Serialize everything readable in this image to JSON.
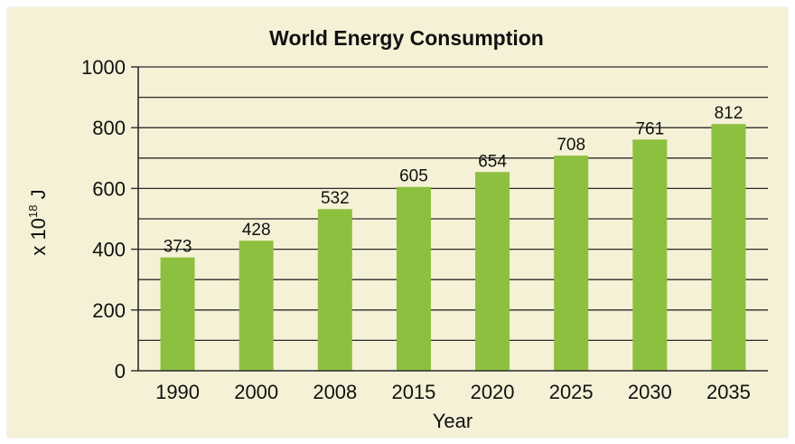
{
  "chart_data": {
    "type": "bar",
    "title": "World Energy Consumption",
    "xlabel": "Year",
    "ylabel": {
      "prefix": "x 10",
      "exponent": "18",
      "unit": " J"
    },
    "categories": [
      "1990",
      "2000",
      "2008",
      "2015",
      "2020",
      "2025",
      "2030",
      "2035"
    ],
    "values": [
      373,
      428,
      532,
      605,
      654,
      708,
      761,
      812
    ],
    "data_labels": [
      "373",
      "428",
      "532",
      "605",
      "654",
      "708",
      "761",
      "812"
    ],
    "ylim": [
      0,
      1000
    ],
    "yticks": [
      0,
      200,
      400,
      600,
      800,
      1000
    ],
    "ytick_labels": [
      "0",
      "200",
      "400",
      "600",
      "800",
      "1000"
    ],
    "minor_gridline_step": 100,
    "grid": true,
    "legend": "none",
    "colors": {
      "bar": "#8dc03f",
      "background": "#f5f1d6",
      "grid": "#2a2a2a"
    }
  }
}
